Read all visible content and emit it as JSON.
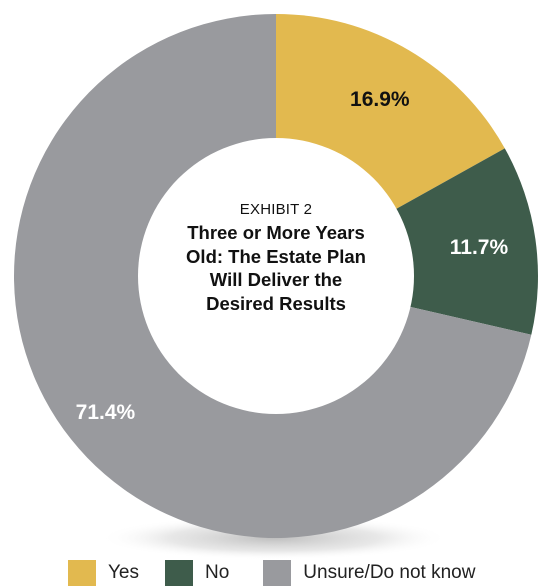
{
  "chart_data": {
    "type": "pie",
    "style": "donut",
    "title_top": "EXHIBIT 2",
    "title_lines": [
      "Three or More Years",
      "Old: The Estate Plan",
      "Will Deliver the",
      "Desired Results"
    ],
    "categories": [
      "Yes",
      "No",
      "Unsure/Do not know"
    ],
    "values": [
      16.9,
      11.7,
      71.4
    ],
    "value_labels": [
      "16.9%",
      "11.7%",
      "71.4%"
    ],
    "colors": [
      "#E2B94F",
      "#3E5C4B",
      "#999A9E"
    ],
    "label_colors": [
      "#111111",
      "#ffffff",
      "#ffffff"
    ],
    "legend_position": "bottom"
  }
}
